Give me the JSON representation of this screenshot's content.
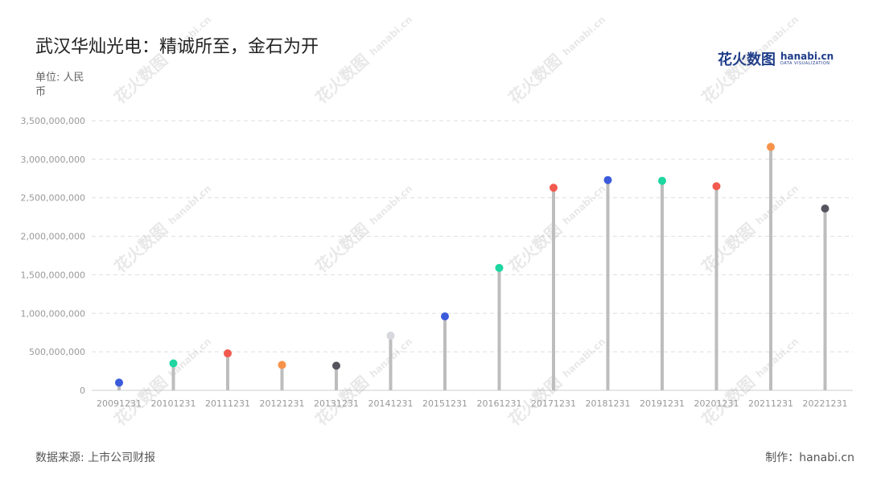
{
  "header": {
    "title": "武汉华灿光电：精诚所至，金石为开",
    "unit": "单位: 人民币"
  },
  "logo": {
    "cn": "花火数图",
    "en": "hanabi.cn",
    "sub": "DATA VISUALIZATION"
  },
  "footer": {
    "source": "数据来源: 上市公司财报",
    "credit": "制作：hanabi.cn"
  },
  "watermark": {
    "cn": "花火数图",
    "en": "hanabi.cn"
  },
  "colors": {
    "stem": "#bdbdbd",
    "grid": "#dddddd",
    "axis_text": "#999999",
    "blue": "#3b5bdb",
    "green": "#1ed6a0",
    "red": "#f25a4f",
    "orange": "#f7924a",
    "dark": "#555560",
    "light": "#d6d8de"
  },
  "chart_data": {
    "type": "lollipop",
    "categories": [
      "20091231",
      "20101231",
      "20111231",
      "20121231",
      "20131231",
      "20141231",
      "20151231",
      "20161231",
      "20171231",
      "20181231",
      "20191231",
      "20201231",
      "20211231",
      "20221231"
    ],
    "values": [
      100000000,
      350000000,
      480000000,
      330000000,
      320000000,
      710000000,
      960000000,
      1590000000,
      2630000000,
      2730000000,
      2720000000,
      2650000000,
      3160000000,
      2360000000
    ],
    "point_colors": [
      "blue",
      "green",
      "red",
      "orange",
      "dark",
      "light",
      "blue",
      "green",
      "red",
      "blue",
      "green",
      "red",
      "orange",
      "dark"
    ],
    "yticks": [
      0,
      500000000,
      1000000000,
      1500000000,
      2000000000,
      2500000000,
      3000000000,
      3500000000
    ],
    "ytick_labels": [
      "0",
      "500,000,000",
      "1,000,000,000",
      "1,500,000,000",
      "2,000,000,000",
      "2,500,000,000",
      "3,000,000,000",
      "3,500,000,000"
    ],
    "ylim": [
      0,
      3500000000
    ],
    "grid": true,
    "legend": "none"
  }
}
